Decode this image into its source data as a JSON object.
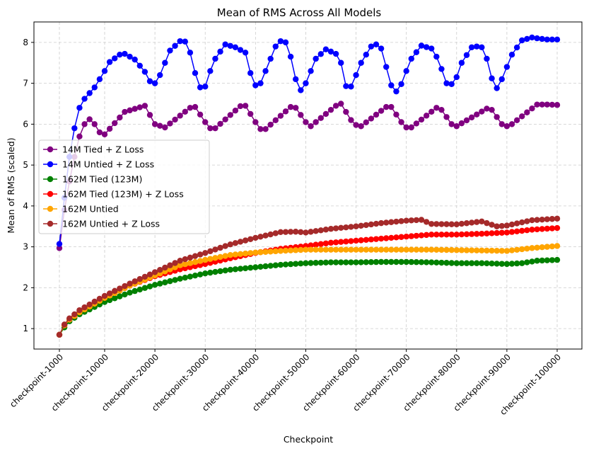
{
  "chart_data": {
    "type": "line",
    "title": "Mean of RMS Across All Models",
    "xlabel": "Checkpoint",
    "ylabel": "Mean of RMS (scaled)",
    "ylim": [
      0.5,
      8.5
    ],
    "yticks": [
      1,
      2,
      3,
      4,
      5,
      6,
      7,
      8
    ],
    "x_index_range": [
      1,
      100
    ],
    "xticks": [
      {
        "index": 1,
        "label": "checkpoint-1000"
      },
      {
        "index": 10,
        "label": "checkpoint-10000"
      },
      {
        "index": 20,
        "label": "checkpoint-20000"
      },
      {
        "index": 30,
        "label": "checkpoint-30000"
      },
      {
        "index": 40,
        "label": "checkpoint-40000"
      },
      {
        "index": 50,
        "label": "checkpoint-50000"
      },
      {
        "index": 60,
        "label": "checkpoint-60000"
      },
      {
        "index": 70,
        "label": "checkpoint-70000"
      },
      {
        "index": 80,
        "label": "checkpoint-80000"
      },
      {
        "index": 90,
        "label": "checkpoint-90000"
      },
      {
        "index": 100,
        "label": "checkpoint-100000"
      }
    ],
    "grid": true,
    "legend_position": "center-left",
    "series_keypoints": [
      {
        "name": "14M Tied + Z Loss",
        "color": "#800080",
        "points": [
          [
            1,
            2.97
          ],
          [
            2,
            3.9
          ],
          [
            3,
            4.6
          ],
          [
            4,
            5.2
          ],
          [
            5,
            5.7
          ],
          [
            6,
            6.0
          ],
          [
            7,
            6.12
          ],
          [
            8,
            6.0
          ],
          [
            9,
            5.8
          ],
          [
            10,
            5.75
          ],
          [
            14,
            6.3
          ],
          [
            18,
            6.45
          ],
          [
            20,
            6.0
          ],
          [
            22,
            5.92
          ],
          [
            27,
            6.4
          ],
          [
            28,
            6.42
          ],
          [
            30,
            6.05
          ],
          [
            31,
            5.9
          ],
          [
            32,
            5.9
          ],
          [
            37,
            6.44
          ],
          [
            38,
            6.45
          ],
          [
            40,
            6.05
          ],
          [
            41,
            5.88
          ],
          [
            42,
            5.88
          ],
          [
            47,
            6.42
          ],
          [
            48,
            6.4
          ],
          [
            50,
            6.05
          ],
          [
            51,
            5.95
          ],
          [
            56,
            6.45
          ],
          [
            57,
            6.5
          ],
          [
            59,
            6.1
          ],
          [
            60,
            5.98
          ],
          [
            61,
            5.95
          ],
          [
            66,
            6.42
          ],
          [
            67,
            6.42
          ],
          [
            69,
            6.05
          ],
          [
            70,
            5.92
          ],
          [
            71,
            5.92
          ],
          [
            76,
            6.4
          ],
          [
            77,
            6.35
          ],
          [
            79,
            6.0
          ],
          [
            80,
            5.95
          ],
          [
            86,
            6.38
          ],
          [
            87,
            6.35
          ],
          [
            89,
            6.0
          ],
          [
            90,
            5.95
          ],
          [
            91,
            6.0
          ],
          [
            96,
            6.48
          ],
          [
            98,
            6.48
          ],
          [
            100,
            6.47
          ]
        ]
      },
      {
        "name": "14M Untied + Z Loss",
        "color": "#0000ff",
        "points": [
          [
            1,
            3.07
          ],
          [
            2,
            4.2
          ],
          [
            3,
            5.2
          ],
          [
            4,
            5.9
          ],
          [
            5,
            6.4
          ],
          [
            6,
            6.62
          ],
          [
            8,
            6.9
          ],
          [
            10,
            7.3
          ],
          [
            11,
            7.52
          ],
          [
            13,
            7.7
          ],
          [
            14,
            7.72
          ],
          [
            16,
            7.58
          ],
          [
            18,
            7.28
          ],
          [
            19,
            7.05
          ],
          [
            20,
            7.0
          ],
          [
            21,
            7.2
          ],
          [
            22,
            7.5
          ],
          [
            23,
            7.8
          ],
          [
            25,
            8.03
          ],
          [
            26,
            8.02
          ],
          [
            27,
            7.75
          ],
          [
            28,
            7.25
          ],
          [
            29,
            6.9
          ],
          [
            30,
            6.92
          ],
          [
            31,
            7.3
          ],
          [
            32,
            7.6
          ],
          [
            34,
            7.95
          ],
          [
            36,
            7.88
          ],
          [
            38,
            7.75
          ],
          [
            39,
            7.25
          ],
          [
            40,
            6.95
          ],
          [
            41,
            7.0
          ],
          [
            42,
            7.3
          ],
          [
            44,
            7.9
          ],
          [
            45,
            8.03
          ],
          [
            46,
            8.0
          ],
          [
            47,
            7.65
          ],
          [
            48,
            7.1
          ],
          [
            49,
            6.83
          ],
          [
            50,
            7.0
          ],
          [
            51,
            7.3
          ],
          [
            52,
            7.6
          ],
          [
            54,
            7.83
          ],
          [
            56,
            7.72
          ],
          [
            57,
            7.5
          ],
          [
            58,
            6.93
          ],
          [
            59,
            6.92
          ],
          [
            60,
            7.2
          ],
          [
            61,
            7.5
          ],
          [
            63,
            7.9
          ],
          [
            64,
            7.95
          ],
          [
            65,
            7.85
          ],
          [
            66,
            7.4
          ],
          [
            67,
            6.95
          ],
          [
            68,
            6.8
          ],
          [
            69,
            6.98
          ],
          [
            70,
            7.3
          ],
          [
            71,
            7.6
          ],
          [
            73,
            7.92
          ],
          [
            75,
            7.85
          ],
          [
            76,
            7.65
          ],
          [
            77,
            7.35
          ],
          [
            78,
            7.0
          ],
          [
            79,
            6.98
          ],
          [
            80,
            7.15
          ],
          [
            81,
            7.5
          ],
          [
            83,
            7.88
          ],
          [
            84,
            7.9
          ],
          [
            85,
            7.88
          ],
          [
            86,
            7.6
          ],
          [
            87,
            7.12
          ],
          [
            88,
            6.88
          ],
          [
            89,
            7.1
          ],
          [
            90,
            7.4
          ],
          [
            91,
            7.7
          ],
          [
            93,
            8.05
          ],
          [
            95,
            8.12
          ],
          [
            96,
            8.1
          ],
          [
            98,
            8.07
          ],
          [
            100,
            8.07
          ]
        ]
      },
      {
        "name": "162M Tied (123M)",
        "color": "#008000",
        "points": [
          [
            1,
            0.85
          ],
          [
            2,
            1.03
          ],
          [
            3,
            1.18
          ],
          [
            5,
            1.35
          ],
          [
            10,
            1.65
          ],
          [
            15,
            1.88
          ],
          [
            20,
            2.07
          ],
          [
            25,
            2.22
          ],
          [
            30,
            2.35
          ],
          [
            35,
            2.44
          ],
          [
            40,
            2.5
          ],
          [
            45,
            2.56
          ],
          [
            50,
            2.6
          ],
          [
            55,
            2.62
          ],
          [
            60,
            2.62
          ],
          [
            65,
            2.63
          ],
          [
            70,
            2.63
          ],
          [
            75,
            2.62
          ],
          [
            80,
            2.6
          ],
          [
            85,
            2.6
          ],
          [
            90,
            2.58
          ],
          [
            93,
            2.6
          ],
          [
            96,
            2.66
          ],
          [
            100,
            2.68
          ]
        ]
      },
      {
        "name": "162M Tied (123M) + Z Loss",
        "color": "#ff0000",
        "points": [
          [
            1,
            0.85
          ],
          [
            2,
            1.08
          ],
          [
            3,
            1.22
          ],
          [
            5,
            1.4
          ],
          [
            10,
            1.75
          ],
          [
            15,
            2.05
          ],
          [
            20,
            2.28
          ],
          [
            25,
            2.45
          ],
          [
            30,
            2.58
          ],
          [
            35,
            2.72
          ],
          [
            40,
            2.85
          ],
          [
            45,
            2.95
          ],
          [
            50,
            3.02
          ],
          [
            55,
            3.1
          ],
          [
            60,
            3.15
          ],
          [
            65,
            3.2
          ],
          [
            70,
            3.25
          ],
          [
            75,
            3.3
          ],
          [
            80,
            3.3
          ],
          [
            85,
            3.32
          ],
          [
            90,
            3.35
          ],
          [
            95,
            3.42
          ],
          [
            100,
            3.46
          ]
        ]
      },
      {
        "name": "162M Untied",
        "color": "#ffa500",
        "points": [
          [
            1,
            0.85
          ],
          [
            2,
            1.08
          ],
          [
            3,
            1.22
          ],
          [
            5,
            1.4
          ],
          [
            10,
            1.75
          ],
          [
            15,
            2.05
          ],
          [
            20,
            2.3
          ],
          [
            25,
            2.55
          ],
          [
            30,
            2.68
          ],
          [
            35,
            2.8
          ],
          [
            40,
            2.86
          ],
          [
            45,
            2.9
          ],
          [
            50,
            2.93
          ],
          [
            55,
            2.93
          ],
          [
            60,
            2.93
          ],
          [
            65,
            2.93
          ],
          [
            70,
            2.93
          ],
          [
            75,
            2.93
          ],
          [
            80,
            2.92
          ],
          [
            85,
            2.91
          ],
          [
            90,
            2.9
          ],
          [
            95,
            2.97
          ],
          [
            100,
            3.02
          ]
        ]
      },
      {
        "name": "162M Untied + Z Loss",
        "color": "#a52a2a",
        "points": [
          [
            1,
            0.85
          ],
          [
            2,
            1.1
          ],
          [
            3,
            1.25
          ],
          [
            5,
            1.45
          ],
          [
            10,
            1.8
          ],
          [
            15,
            2.1
          ],
          [
            20,
            2.38
          ],
          [
            25,
            2.66
          ],
          [
            30,
            2.85
          ],
          [
            35,
            3.06
          ],
          [
            40,
            3.22
          ],
          [
            45,
            3.36
          ],
          [
            48,
            3.37
          ],
          [
            50,
            3.35
          ],
          [
            55,
            3.44
          ],
          [
            60,
            3.5
          ],
          [
            65,
            3.58
          ],
          [
            70,
            3.64
          ],
          [
            73,
            3.66
          ],
          [
            75,
            3.56
          ],
          [
            80,
            3.55
          ],
          [
            85,
            3.62
          ],
          [
            88,
            3.5
          ],
          [
            90,
            3.52
          ],
          [
            95,
            3.65
          ],
          [
            100,
            3.69
          ]
        ]
      }
    ]
  }
}
